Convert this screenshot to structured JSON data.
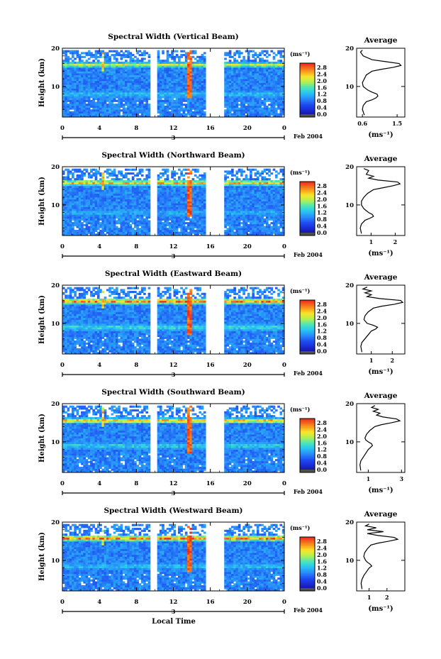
{
  "figure": {
    "xlabel": "Local Time",
    "date_label": "Feb 2004",
    "date_marker": "3"
  },
  "chart_data": [
    {
      "type": "heatmap",
      "title": "Spectral Width (Vertical Beam)",
      "ylabel": "Height (km)",
      "xlabel": "Local Time",
      "x_ticks": [
        "0",
        "4",
        "8",
        "12",
        "16",
        "20",
        "0"
      ],
      "y_ticks": [
        "20",
        "10"
      ],
      "xlim": [
        0,
        24
      ],
      "ylim": [
        2,
        20
      ],
      "data_gaps_hours": [
        [
          9.6,
          10.2
        ],
        [
          15.6,
          17.5
        ],
        [
          21.9,
          22.1
        ]
      ],
      "layers": [
        {
          "height_km": 15.7,
          "width_ms": 2.2
        },
        {
          "height_km": 8,
          "width_ms": 1.4
        }
      ],
      "colorbar": {
        "unit": "(ms⁻¹)",
        "ticks": [
          "2.8",
          "2.4",
          "2.0",
          "1.6",
          "1.2",
          "0.8",
          "0.4",
          "0.0"
        ],
        "range": [
          0,
          2.8
        ]
      },
      "profile": {
        "title": "Average",
        "x_unit": "(ms⁻¹)",
        "x_ticks": [
          "0.6",
          "1.5"
        ],
        "x_range": [
          0.45,
          1.7
        ],
        "height": [
          2.5,
          4,
          5,
          6,
          6.5,
          7,
          7.5,
          8,
          8.5,
          9,
          9.5,
          10,
          11,
          12,
          13,
          14,
          14.5,
          15,
          15.5,
          16,
          16.5,
          17,
          18,
          19,
          19.5
        ],
        "value": [
          0.65,
          0.6,
          0.62,
          0.7,
          0.85,
          0.95,
          1.0,
          0.98,
          0.85,
          0.75,
          0.68,
          0.62,
          0.6,
          0.65,
          0.7,
          0.85,
          1.1,
          1.4,
          1.6,
          1.55,
          1.2,
          0.85,
          0.62,
          0.55,
          0.6
        ]
      }
    },
    {
      "type": "heatmap",
      "title": "Spectral Width (Northward Beam)",
      "ylabel": "Height (km)",
      "xlabel": "Local Time",
      "x_ticks": [
        "0",
        "4",
        "8",
        "12",
        "16",
        "20",
        "0"
      ],
      "y_ticks": [
        "20",
        "10"
      ],
      "xlim": [
        0,
        24
      ],
      "ylim": [
        2,
        20
      ],
      "data_gaps_hours": [
        [
          9.6,
          10.2
        ],
        [
          15.6,
          17.5
        ],
        [
          21.9,
          22.1
        ]
      ],
      "layers": [
        {
          "height_km": 15.8,
          "width_ms": 2.6
        },
        {
          "height_km": 8,
          "width_ms": 1.3
        }
      ],
      "colorbar": {
        "unit": "(ms⁻¹)",
        "ticks": [
          "2.8",
          "2.4",
          "2.0",
          "1.6",
          "1.2",
          "0.8",
          "0.4",
          "0.0"
        ],
        "range": [
          0,
          2.8
        ]
      },
      "profile": {
        "title": "Average",
        "x_unit": "(ms⁻¹)",
        "x_ticks": [
          "1",
          "2"
        ],
        "x_range": [
          0.4,
          2.4
        ],
        "height": [
          2.5,
          4,
          5,
          6,
          6.5,
          7,
          7.5,
          8,
          8.5,
          9,
          10,
          11,
          12,
          13,
          14,
          14.5,
          15,
          15.5,
          16,
          16.5,
          17,
          17.5,
          18,
          19,
          19.5
        ],
        "value": [
          0.6,
          0.55,
          0.6,
          0.75,
          0.95,
          1.1,
          1.05,
          0.9,
          0.8,
          0.7,
          0.6,
          0.6,
          0.7,
          0.85,
          1.1,
          1.5,
          1.9,
          2.2,
          2.1,
          1.3,
          0.9,
          1.1,
          0.8,
          0.9,
          0.7
        ]
      }
    },
    {
      "type": "heatmap",
      "title": "Spectral Width (Eastward Beam)",
      "ylabel": "Height (km)",
      "xlabel": "Local Time",
      "x_ticks": [
        "0",
        "4",
        "8",
        "12",
        "16",
        "20",
        "0"
      ],
      "y_ticks": [
        "20",
        "10"
      ],
      "xlim": [
        0,
        24
      ],
      "ylim": [
        2,
        20
      ],
      "data_gaps_hours": [
        [
          9.6,
          10.2
        ],
        [
          15.6,
          17.5
        ],
        [
          21.9,
          22.1
        ]
      ],
      "layers": [
        {
          "height_km": 15.8,
          "width_ms": 2.8
        },
        {
          "height_km": 9,
          "width_ms": 1.6
        }
      ],
      "colorbar": {
        "unit": "(ms⁻¹)",
        "ticks": [
          "2.8",
          "2.4",
          "2.0",
          "1.6",
          "1.2",
          "0.8",
          "0.4",
          "0.0"
        ],
        "range": [
          0,
          2.8
        ]
      },
      "profile": {
        "title": "Average",
        "x_unit": "(ms⁻¹)",
        "x_ticks": [
          "1",
          "2"
        ],
        "x_range": [
          0.3,
          2.6
        ],
        "height": [
          2.5,
          4,
          5,
          6,
          7,
          8,
          8.5,
          9,
          9.5,
          10,
          11,
          12,
          13,
          14,
          14.5,
          15,
          15.5,
          16,
          16.5,
          17,
          17.5,
          18,
          18.5,
          19,
          19.5
        ],
        "value": [
          0.55,
          0.5,
          0.55,
          0.7,
          0.85,
          1.0,
          1.2,
          1.3,
          1.1,
          0.8,
          0.65,
          0.7,
          0.85,
          1.1,
          1.5,
          2.1,
          2.5,
          2.4,
          1.4,
          0.8,
          1.0,
          0.7,
          1.0,
          0.6,
          0.8
        ]
      }
    },
    {
      "type": "heatmap",
      "title": "Spectral Width (Southward Beam)",
      "ylabel": "Height (km)",
      "xlabel": "Local Time",
      "x_ticks": [
        "0",
        "4",
        "8",
        "12",
        "16",
        "20",
        "0"
      ],
      "y_ticks": [
        "20",
        "10"
      ],
      "xlim": [
        0,
        24
      ],
      "ylim": [
        2,
        20
      ],
      "data_gaps_hours": [
        [
          9.6,
          10.2
        ],
        [
          15.6,
          17.5
        ],
        [
          21.9,
          22.1
        ]
      ],
      "layers": [
        {
          "height_km": 15.6,
          "width_ms": 2.6
        },
        {
          "height_km": 9,
          "width_ms": 1.5
        }
      ],
      "colorbar": {
        "unit": "(ms⁻¹)",
        "ticks": [
          "2.8",
          "2.4",
          "2.0",
          "1.6",
          "1.2",
          "0.8",
          "0.4",
          "0.0"
        ],
        "range": [
          0,
          2.8
        ]
      },
      "profile": {
        "title": "Average",
        "x_unit": "(ms⁻¹)",
        "x_ticks": [
          "1",
          "3"
        ],
        "x_range": [
          0.3,
          3.2
        ],
        "height": [
          2.5,
          4,
          5,
          6,
          7,
          8,
          9,
          9.5,
          10,
          10.5,
          11,
          12,
          13,
          14,
          14.5,
          15,
          15.5,
          16,
          16.5,
          17,
          17.5,
          18,
          18.5,
          19,
          19.5
        ],
        "value": [
          0.55,
          0.5,
          0.55,
          0.7,
          0.85,
          1.0,
          1.25,
          1.2,
          1.0,
          0.85,
          0.8,
          0.9,
          1.1,
          1.4,
          1.8,
          2.4,
          2.9,
          2.7,
          1.9,
          1.5,
          1.7,
          1.3,
          1.6,
          1.2,
          1.4
        ]
      }
    },
    {
      "type": "heatmap",
      "title": "Spectral Width (Westward Beam)",
      "ylabel": "Height (km)",
      "xlabel": "Local Time",
      "x_ticks": [
        "0",
        "4",
        "8",
        "12",
        "16",
        "20",
        "0"
      ],
      "y_ticks": [
        "20",
        "10"
      ],
      "xlim": [
        0,
        24
      ],
      "ylim": [
        2,
        20
      ],
      "data_gaps_hours": [
        [
          9.6,
          10.2
        ],
        [
          15.6,
          17.5
        ],
        [
          21.9,
          22.1
        ]
      ],
      "layers": [
        {
          "height_km": 15.8,
          "width_ms": 2.8
        },
        {
          "height_km": 8.5,
          "width_ms": 1.4
        }
      ],
      "colorbar": {
        "unit": "(ms⁻¹)",
        "ticks": [
          "2.8",
          "2.4",
          "2.0",
          "1.6",
          "1.2",
          "0.8",
          "0.4",
          "0.0"
        ],
        "range": [
          0,
          2.8
        ]
      },
      "profile": {
        "title": "Average",
        "x_unit": "(ms⁻¹)",
        "x_ticks": [
          "1",
          "2"
        ],
        "x_range": [
          0.3,
          3.0
        ],
        "height": [
          2.5,
          4,
          5,
          6,
          7,
          8,
          8.5,
          9,
          9.5,
          10,
          11,
          12,
          13,
          14,
          14.5,
          15,
          15.5,
          16,
          16.5,
          17,
          17.5,
          18,
          18.5,
          19,
          19.5
        ],
        "value": [
          0.6,
          0.55,
          0.6,
          0.7,
          0.85,
          1.0,
          1.15,
          1.05,
          0.9,
          0.8,
          0.7,
          0.75,
          0.9,
          1.1,
          1.5,
          2.1,
          2.6,
          2.4,
          1.5,
          0.9,
          1.8,
          0.9,
          1.4,
          0.8,
          1.0
        ]
      }
    }
  ]
}
